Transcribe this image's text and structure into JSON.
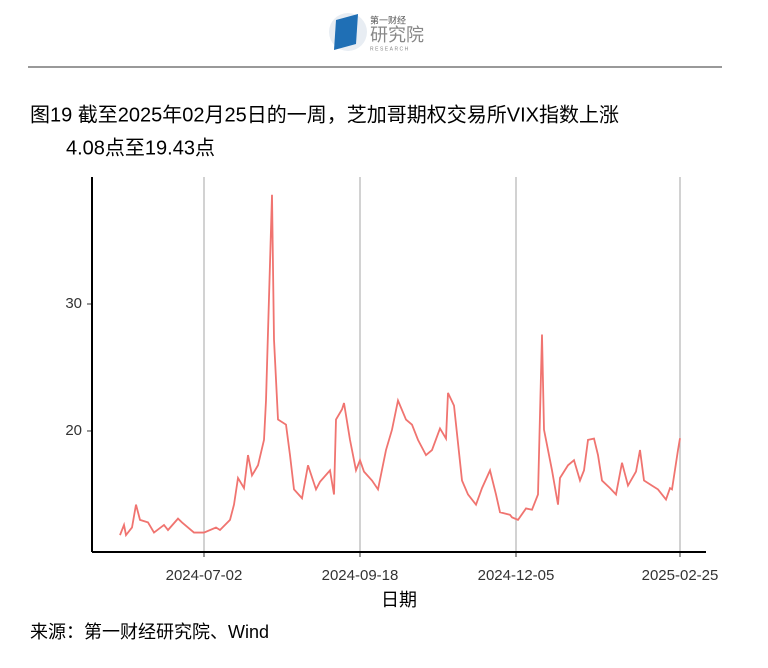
{
  "logo": {
    "top": "第一财经",
    "main": "研究院",
    "sub": "RESEARCH"
  },
  "chart_data": {
    "type": "line",
    "title": [
      "图19  截至2025年02月25日的一周，芝加哥期权交易所VIX指数上涨",
      "4.08点至19.43点"
    ],
    "xlabel": "日期",
    "source": "来源：第一财经研究院、Wind",
    "x": [
      "2024-05-21",
      "2024-05-23",
      "2024-05-24",
      "2024-05-27",
      "2024-05-29",
      "2024-05-31",
      "2024-06-04",
      "2024-06-07",
      "2024-06-12",
      "2024-06-14",
      "2024-06-19",
      "2024-06-21",
      "2024-06-27",
      "2024-07-02",
      "2024-07-08",
      "2024-07-10",
      "2024-07-15",
      "2024-07-17",
      "2024-07-19",
      "2024-07-22",
      "2024-07-24",
      "2024-07-26",
      "2024-07-29",
      "2024-08-01",
      "2024-08-02",
      "2024-08-05",
      "2024-08-06",
      "2024-08-08",
      "2024-08-12",
      "2024-08-14",
      "2024-08-16",
      "2024-08-20",
      "2024-08-23",
      "2024-08-27",
      "2024-08-29",
      "2024-09-03",
      "2024-09-05",
      "2024-09-06",
      "2024-09-09",
      "2024-09-10",
      "2024-09-13",
      "2024-09-16",
      "2024-09-18",
      "2024-09-20",
      "2024-09-24",
      "2024-09-27",
      "2024-10-01",
      "2024-10-04",
      "2024-10-07",
      "2024-10-11",
      "2024-10-14",
      "2024-10-17",
      "2024-10-21",
      "2024-10-24",
      "2024-10-28",
      "2024-10-31",
      "2024-11-01",
      "2024-11-04",
      "2024-11-08",
      "2024-11-11",
      "2024-11-15",
      "2024-11-18",
      "2024-11-22",
      "2024-11-25",
      "2024-11-27",
      "2024-12-02",
      "2024-12-03",
      "2024-12-06",
      "2024-12-10",
      "2024-12-13",
      "2024-12-16",
      "2024-12-18",
      "2024-12-19",
      "2024-12-23",
      "2024-12-26",
      "2024-12-27",
      "2024-12-31",
      "2025-01-03",
      "2025-01-06",
      "2025-01-08",
      "2025-01-10",
      "2025-01-13",
      "2025-01-15",
      "2025-01-17",
      "2025-01-21",
      "2025-01-24",
      "2025-01-27",
      "2025-01-30",
      "2025-02-03",
      "2025-02-05",
      "2025-02-07",
      "2025-02-11",
      "2025-02-14",
      "2025-02-18",
      "2025-02-20",
      "2025-02-21",
      "2025-02-24",
      "2025-02-25"
    ],
    "series": [
      {
        "name": "VIX",
        "color": "#f07470",
        "values": [
          11.8,
          12.6,
          11.8,
          12.4,
          14.2,
          13.0,
          12.8,
          12.0,
          12.6,
          12.2,
          13.1,
          12.8,
          12.0,
          12.0,
          12.4,
          12.2,
          13.0,
          14.2,
          16.3,
          15.5,
          18.1,
          16.5,
          17.3,
          19.3,
          22.4,
          38.6,
          27.2,
          20.9,
          20.5,
          18.1,
          15.4,
          14.7,
          17.3,
          15.4,
          16.0,
          16.9,
          15.0,
          20.9,
          21.7,
          22.2,
          19.3,
          16.9,
          17.7,
          16.8,
          16.1,
          15.4,
          18.5,
          20.1,
          22.4,
          20.9,
          20.5,
          19.3,
          18.1,
          18.5,
          20.2,
          19.4,
          23.0,
          22.0,
          16.1,
          15.0,
          14.2,
          15.5,
          16.9,
          15.0,
          13.6,
          13.4,
          13.2,
          13.0,
          13.9,
          13.8,
          15.0,
          27.6,
          20.1,
          16.9,
          14.2,
          16.3,
          17.3,
          17.7,
          16.1,
          16.9,
          19.3,
          19.4,
          18.1,
          16.1,
          15.5,
          15.0,
          17.5,
          15.7,
          16.8,
          18.5,
          16.1,
          15.7,
          15.4,
          14.6,
          15.5,
          15.4,
          18.5,
          19.43
        ]
      }
    ],
    "xlim": [
      "2024-05-07",
      "2025-03-10"
    ],
    "xticks": [
      "2024-07-02",
      "2024-09-18",
      "2024-12-05",
      "2025-02-25"
    ],
    "ylim": [
      10.47,
      40
    ],
    "yticks": [
      20,
      30
    ],
    "grid": "x"
  }
}
